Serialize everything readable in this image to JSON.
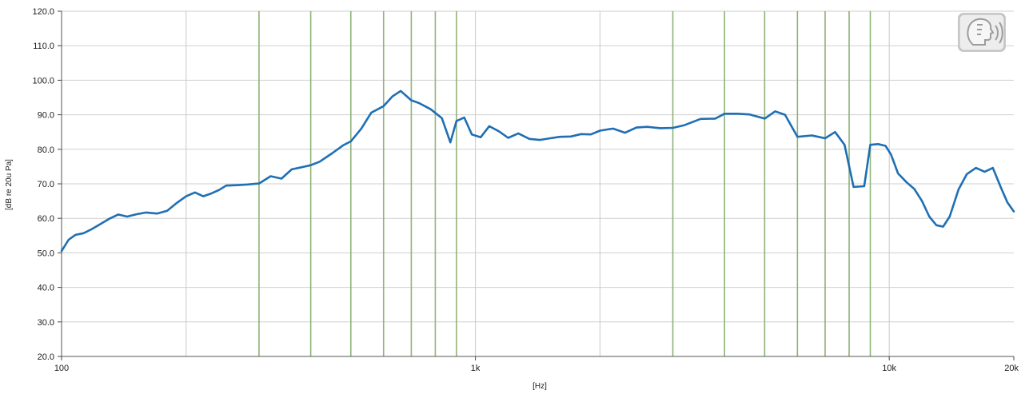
{
  "chart_data": {
    "type": "line",
    "xscale": "log",
    "xlim": [
      100,
      20000
    ],
    "ylim": [
      20,
      120
    ],
    "xlabel": "[Hz]",
    "ylabel": "[dB re 20u Pa]",
    "yticks": [
      20,
      30,
      40,
      50,
      60,
      70,
      80,
      90,
      100,
      110,
      120
    ],
    "ytick_labels": [
      "20.0",
      "30.0",
      "40.0",
      "50.0",
      "60.0",
      "70.0",
      "80.0",
      "90.0",
      "100.0",
      "110.0",
      "120.0"
    ],
    "xticks": [
      100,
      1000,
      10000,
      20000
    ],
    "xtick_labels": [
      "100",
      "1k",
      "10k",
      "20k"
    ],
    "grid": true,
    "gray_grid_frequencies": [
      200,
      1000,
      2000,
      10000
    ],
    "green_grid_frequencies": [
      300,
      400,
      500,
      600,
      700,
      800,
      900,
      3000,
      4000,
      5000,
      6000,
      7000,
      8000,
      9000
    ],
    "line_color": "#1f6fb4",
    "series": [
      {
        "x": [
          100,
          104,
          108,
          113,
          118,
          124,
          130,
          137,
          144,
          152,
          160,
          170,
          180,
          190,
          200,
          210,
          220,
          230,
          240,
          250,
          265,
          280,
          300,
          320,
          340,
          360,
          380,
          400,
          420,
          450,
          480,
          500,
          530,
          560,
          600,
          630,
          660,
          700,
          730,
          780,
          830,
          870,
          900,
          940,
          980,
          1030,
          1080,
          1140,
          1200,
          1270,
          1350,
          1430,
          1500,
          1600,
          1700,
          1800,
          1900,
          2000,
          2150,
          2300,
          2450,
          2600,
          2800,
          3000,
          3200,
          3500,
          3800,
          4000,
          4300,
          4600,
          5000,
          5300,
          5600,
          6000,
          6500,
          7000,
          7400,
          7800,
          8200,
          8700,
          9000,
          9400,
          9800,
          10100,
          10500,
          11000,
          11500,
          12000,
          12500,
          13000,
          13500,
          14000,
          14700,
          15400,
          16200,
          17000,
          17800,
          18600,
          19300,
          20000
        ],
        "y": [
          50.5,
          53.8,
          55.2,
          55.7,
          56.8,
          58.3,
          59.8,
          61.1,
          60.5,
          61.2,
          61.7,
          61.4,
          62.2,
          64.5,
          66.4,
          67.5,
          66.4,
          67.2,
          68.2,
          69.5,
          69.6,
          69.8,
          70.1,
          72.2,
          71.5,
          74.2,
          74.8,
          75.4,
          76.4,
          78.8,
          81.2,
          82.3,
          86.0,
          90.6,
          92.5,
          95.3,
          96.9,
          94.2,
          93.4,
          91.6,
          89.0,
          82.0,
          88.2,
          89.2,
          84.3,
          83.5,
          86.7,
          85.2,
          83.3,
          84.6,
          83.0,
          82.7,
          83.1,
          83.6,
          83.7,
          84.4,
          84.3,
          85.4,
          86.0,
          84.8,
          86.3,
          86.5,
          86.1,
          86.2,
          87.0,
          88.8,
          88.9,
          90.3,
          90.3,
          90.1,
          88.9,
          91.0,
          90.0,
          83.6,
          84.0,
          83.2,
          85.0,
          81.3,
          69.1,
          69.3,
          81.3,
          81.5,
          81.0,
          78.5,
          73.0,
          70.5,
          68.5,
          65.0,
          60.5,
          58.0,
          57.6,
          60.5,
          68.3,
          72.8,
          74.6,
          73.5,
          74.6,
          69.0,
          64.6,
          62.0
        ]
      }
    ]
  }
}
